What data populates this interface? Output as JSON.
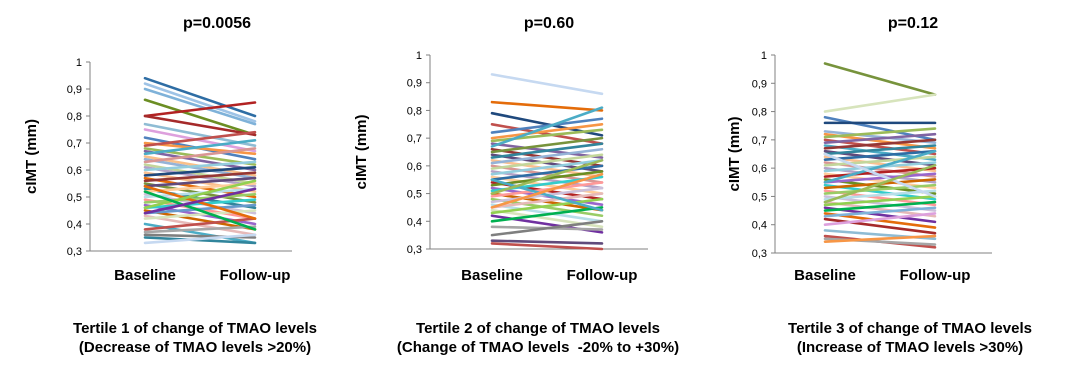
{
  "chart_data": [
    {
      "type": "line",
      "title": "p=0.0056",
      "ylabel": "cIMT (mm)",
      "categories": [
        "Baseline",
        "Follow-up"
      ],
      "ylim": [
        0.3,
        1.0
      ],
      "yticks": [
        "0,3",
        "0,4",
        "0,5",
        "0,6",
        "0,7",
        "0,8",
        "0,9",
        "1"
      ],
      "caption": [
        "Tertile 1 of change of TMAO levels",
        "(Decrease of TMAO levels >20%)"
      ],
      "series": [
        {
          "values": [
            0.94,
            0.8
          ],
          "color": "#2e6da4"
        },
        {
          "values": [
            0.92,
            0.78
          ],
          "color": "#9ec3e6"
        },
        {
          "values": [
            0.9,
            0.77
          ],
          "color": "#7fb2d9"
        },
        {
          "values": [
            0.86,
            0.73
          ],
          "color": "#6b8e23"
        },
        {
          "values": [
            0.8,
            0.85
          ],
          "color": "#b22222"
        },
        {
          "values": [
            0.8,
            0.73
          ],
          "color": "#a52a2a"
        },
        {
          "values": [
            0.77,
            0.69
          ],
          "color": "#8fbcd4"
        },
        {
          "values": [
            0.75,
            0.67
          ],
          "color": "#dda0dd"
        },
        {
          "values": [
            0.72,
            0.64
          ],
          "color": "#4f81bd"
        },
        {
          "values": [
            0.7,
            0.66
          ],
          "color": "#f79646"
        },
        {
          "values": [
            0.69,
            0.74
          ],
          "color": "#c0504d"
        },
        {
          "values": [
            0.68,
            0.62
          ],
          "color": "#9bbb59"
        },
        {
          "values": [
            0.67,
            0.6
          ],
          "color": "#8064a2"
        },
        {
          "values": [
            0.66,
            0.71
          ],
          "color": "#4bacc6"
        },
        {
          "values": [
            0.65,
            0.58
          ],
          "color": "#f9c08a"
        },
        {
          "values": [
            0.64,
            0.57
          ],
          "color": "#95b3d7"
        },
        {
          "values": [
            0.63,
            0.68
          ],
          "color": "#d99694"
        },
        {
          "values": [
            0.62,
            0.55
          ],
          "color": "#c3d69b"
        },
        {
          "values": [
            0.61,
            0.54
          ],
          "color": "#b3a2c7"
        },
        {
          "values": [
            0.6,
            0.63
          ],
          "color": "#93cddd"
        },
        {
          "values": [
            0.59,
            0.52
          ],
          "color": "#fac090"
        },
        {
          "values": [
            0.58,
            0.61
          ],
          "color": "#1f497d"
        },
        {
          "values": [
            0.57,
            0.5
          ],
          "color": "#e46c0a"
        },
        {
          "values": [
            0.56,
            0.59
          ],
          "color": "#953735"
        },
        {
          "values": [
            0.55,
            0.48
          ],
          "color": "#77933c"
        },
        {
          "values": [
            0.54,
            0.57
          ],
          "color": "#604a7b"
        },
        {
          "values": [
            0.53,
            0.46
          ],
          "color": "#31859c"
        },
        {
          "values": [
            0.52,
            0.55
          ],
          "color": "#ffcc99"
        },
        {
          "values": [
            0.51,
            0.44
          ],
          "color": "#ccc0da"
        },
        {
          "values": [
            0.5,
            0.53
          ],
          "color": "#b7dee8"
        },
        {
          "values": [
            0.49,
            0.42
          ],
          "color": "#ff9999"
        },
        {
          "values": [
            0.48,
            0.51
          ],
          "color": "#99cc66"
        },
        {
          "values": [
            0.47,
            0.4
          ],
          "color": "#9966cc"
        },
        {
          "values": [
            0.46,
            0.49
          ],
          "color": "#33cccc"
        },
        {
          "values": [
            0.45,
            0.38
          ],
          "color": "#cc6600"
        },
        {
          "values": [
            0.44,
            0.47
          ],
          "color": "#6699cc"
        },
        {
          "values": [
            0.43,
            0.36
          ],
          "color": "#e6b9b8"
        },
        {
          "values": [
            0.42,
            0.45
          ],
          "color": "#d7e4bc"
        },
        {
          "values": [
            0.4,
            0.33
          ],
          "color": "#4bacc6"
        },
        {
          "values": [
            0.38,
            0.42
          ],
          "color": "#c0504d"
        },
        {
          "values": [
            0.37,
            0.39
          ],
          "color": "#a6a6a6"
        },
        {
          "values": [
            0.36,
            0.35
          ],
          "color": "#7f7f7f"
        },
        {
          "values": [
            0.35,
            0.33
          ],
          "color": "#31859c"
        },
        {
          "values": [
            0.33,
            0.36
          ],
          "color": "#c6d9f1"
        },
        {
          "values": [
            0.54,
            0.42
          ],
          "color": "#e46c0a"
        },
        {
          "values": [
            0.46,
            0.56
          ],
          "color": "#92d050"
        },
        {
          "values": [
            0.52,
            0.38
          ],
          "color": "#00b050"
        },
        {
          "values": [
            0.44,
            0.53
          ],
          "color": "#7030a0"
        }
      ]
    },
    {
      "type": "line",
      "title": "p=0.60",
      "ylabel": "cIMT (mm)",
      "categories": [
        "Baseline",
        "Follow-up"
      ],
      "ylim": [
        0.3,
        1.0
      ],
      "yticks": [
        "0,3",
        "0,4",
        "0,5",
        "0,6",
        "0,7",
        "0,8",
        "0,9",
        "1"
      ],
      "caption": [
        "Tertile 2 of change of TMAO levels",
        "(Change of TMAO levels  -20% to +30%)"
      ],
      "series": [
        {
          "values": [
            0.93,
            0.86
          ],
          "color": "#c6d9f1"
        },
        {
          "values": [
            0.83,
            0.8
          ],
          "color": "#e46c0a"
        },
        {
          "values": [
            0.79,
            0.71
          ],
          "color": "#1f497d"
        },
        {
          "values": [
            0.75,
            0.68
          ],
          "color": "#c0504d"
        },
        {
          "values": [
            0.72,
            0.77
          ],
          "color": "#4f81bd"
        },
        {
          "values": [
            0.7,
            0.75
          ],
          "color": "#f79646"
        },
        {
          "values": [
            0.69,
            0.73
          ],
          "color": "#9bbb59"
        },
        {
          "values": [
            0.68,
            0.63
          ],
          "color": "#8064a2"
        },
        {
          "values": [
            0.67,
            0.81
          ],
          "color": "#4bacc6"
        },
        {
          "values": [
            0.66,
            0.6
          ],
          "color": "#953735"
        },
        {
          "values": [
            0.65,
            0.7
          ],
          "color": "#77933c"
        },
        {
          "values": [
            0.64,
            0.58
          ],
          "color": "#604a7b"
        },
        {
          "values": [
            0.63,
            0.68
          ],
          "color": "#31859c"
        },
        {
          "values": [
            0.62,
            0.56
          ],
          "color": "#fac090"
        },
        {
          "values": [
            0.61,
            0.66
          ],
          "color": "#95b3d7"
        },
        {
          "values": [
            0.6,
            0.54
          ],
          "color": "#d99694"
        },
        {
          "values": [
            0.59,
            0.64
          ],
          "color": "#c3d69b"
        },
        {
          "values": [
            0.58,
            0.52
          ],
          "color": "#b3a2c7"
        },
        {
          "values": [
            0.57,
            0.62
          ],
          "color": "#93cddd"
        },
        {
          "values": [
            0.56,
            0.5
          ],
          "color": "#ffcc99"
        },
        {
          "values": [
            0.55,
            0.6
          ],
          "color": "#2e6da4"
        },
        {
          "values": [
            0.54,
            0.48
          ],
          "color": "#b22222"
        },
        {
          "values": [
            0.53,
            0.58
          ],
          "color": "#6b8e23"
        },
        {
          "values": [
            0.52,
            0.46
          ],
          "color": "#9966cc"
        },
        {
          "values": [
            0.51,
            0.56
          ],
          "color": "#33cccc"
        },
        {
          "values": [
            0.5,
            0.44
          ],
          "color": "#cc6600"
        },
        {
          "values": [
            0.49,
            0.54
          ],
          "color": "#ff9999"
        },
        {
          "values": [
            0.48,
            0.42
          ],
          "color": "#99cc66"
        },
        {
          "values": [
            0.47,
            0.52
          ],
          "color": "#ccc0da"
        },
        {
          "values": [
            0.46,
            0.4
          ],
          "color": "#b7dee8"
        },
        {
          "values": [
            0.45,
            0.5
          ],
          "color": "#e6b9b8"
        },
        {
          "values": [
            0.44,
            0.38
          ],
          "color": "#d7e4bc"
        },
        {
          "values": [
            0.43,
            0.48
          ],
          "color": "#92d050"
        },
        {
          "values": [
            0.42,
            0.36
          ],
          "color": "#7030a0"
        },
        {
          "values": [
            0.4,
            0.45
          ],
          "color": "#00b050"
        },
        {
          "values": [
            0.38,
            0.37
          ],
          "color": "#a6a6a6"
        },
        {
          "values": [
            0.35,
            0.4
          ],
          "color": "#7f7f7f"
        },
        {
          "values": [
            0.33,
            0.32
          ],
          "color": "#604a7b"
        },
        {
          "values": [
            0.32,
            0.3
          ],
          "color": "#c0504d"
        },
        {
          "values": [
            0.55,
            0.44
          ],
          "color": "#4bacc6"
        },
        {
          "values": [
            0.45,
            0.57
          ],
          "color": "#f79646"
        },
        {
          "values": [
            0.5,
            0.62
          ],
          "color": "#9bbb59"
        }
      ]
    },
    {
      "type": "line",
      "title": "p=0.12",
      "ylabel": "cIMT (mm)",
      "categories": [
        "Baseline",
        "Follow-up"
      ],
      "ylim": [
        0.3,
        1.0
      ],
      "yticks": [
        "0,3",
        "0,4",
        "0,5",
        "0,6",
        "0,7",
        "0,8",
        "0,9",
        "1"
      ],
      "caption": [
        "Tertile 3 of change of TMAO levels",
        "(Increase of TMAO levels >30%)"
      ],
      "series": [
        {
          "values": [
            0.97,
            0.86
          ],
          "color": "#77933c"
        },
        {
          "values": [
            0.8,
            0.86
          ],
          "color": "#d7e4bc"
        },
        {
          "values": [
            0.78,
            0.7
          ],
          "color": "#4f81bd"
        },
        {
          "values": [
            0.76,
            0.76
          ],
          "color": "#1f497d"
        },
        {
          "values": [
            0.73,
            0.69
          ],
          "color": "#95b3d7"
        },
        {
          "values": [
            0.72,
            0.67
          ],
          "color": "#f79646"
        },
        {
          "values": [
            0.71,
            0.74
          ],
          "color": "#9bbb59"
        },
        {
          "values": [
            0.7,
            0.65
          ],
          "color": "#c0504d"
        },
        {
          "values": [
            0.69,
            0.72
          ],
          "color": "#8064a2"
        },
        {
          "values": [
            0.68,
            0.63
          ],
          "color": "#4bacc6"
        },
        {
          "values": [
            0.67,
            0.7
          ],
          "color": "#953735"
        },
        {
          "values": [
            0.66,
            0.61
          ],
          "color": "#604a7b"
        },
        {
          "values": [
            0.65,
            0.68
          ],
          "color": "#31859c"
        },
        {
          "values": [
            0.64,
            0.59
          ],
          "color": "#fac090"
        },
        {
          "values": [
            0.63,
            0.66
          ],
          "color": "#2e6da4"
        },
        {
          "values": [
            0.62,
            0.57
          ],
          "color": "#d99694"
        },
        {
          "values": [
            0.61,
            0.64
          ],
          "color": "#c3d69b"
        },
        {
          "values": [
            0.6,
            0.55
          ],
          "color": "#b3a2c7"
        },
        {
          "values": [
            0.59,
            0.62
          ],
          "color": "#93cddd"
        },
        {
          "values": [
            0.58,
            0.53
          ],
          "color": "#ffcc99"
        },
        {
          "values": [
            0.57,
            0.6
          ],
          "color": "#b22222"
        },
        {
          "values": [
            0.56,
            0.51
          ],
          "color": "#6b8e23"
        },
        {
          "values": [
            0.55,
            0.58
          ],
          "color": "#9966cc"
        },
        {
          "values": [
            0.54,
            0.49
          ],
          "color": "#33cccc"
        },
        {
          "values": [
            0.53,
            0.56
          ],
          "color": "#cc6600"
        },
        {
          "values": [
            0.52,
            0.47
          ],
          "color": "#ff9999"
        },
        {
          "values": [
            0.51,
            0.54
          ],
          "color": "#99cc66"
        },
        {
          "values": [
            0.5,
            0.45
          ],
          "color": "#ccc0da"
        },
        {
          "values": [
            0.49,
            0.52
          ],
          "color": "#b7dee8"
        },
        {
          "values": [
            0.48,
            0.43
          ],
          "color": "#e6b9b8"
        },
        {
          "values": [
            0.47,
            0.5
          ],
          "color": "#92d050"
        },
        {
          "values": [
            0.46,
            0.41
          ],
          "color": "#7030a0"
        },
        {
          "values": [
            0.45,
            0.48
          ],
          "color": "#00b050"
        },
        {
          "values": [
            0.44,
            0.39
          ],
          "color": "#e46c0a"
        },
        {
          "values": [
            0.43,
            0.46
          ],
          "color": "#7fb2d9"
        },
        {
          "values": [
            0.42,
            0.37
          ],
          "color": "#a52a2a"
        },
        {
          "values": [
            0.4,
            0.44
          ],
          "color": "#dda0dd"
        },
        {
          "values": [
            0.38,
            0.35
          ],
          "color": "#8fbcd4"
        },
        {
          "values": [
            0.36,
            0.32
          ],
          "color": "#c0504d"
        },
        {
          "values": [
            0.35,
            0.33
          ],
          "color": "#a6a6a6"
        },
        {
          "values": [
            0.34,
            0.36
          ],
          "color": "#f79646"
        },
        {
          "values": [
            0.55,
            0.66
          ],
          "color": "#4bacc6"
        },
        {
          "values": [
            0.65,
            0.5
          ],
          "color": "#c6d9f1"
        },
        {
          "values": [
            0.48,
            0.61
          ],
          "color": "#9bbb59"
        }
      ]
    }
  ]
}
